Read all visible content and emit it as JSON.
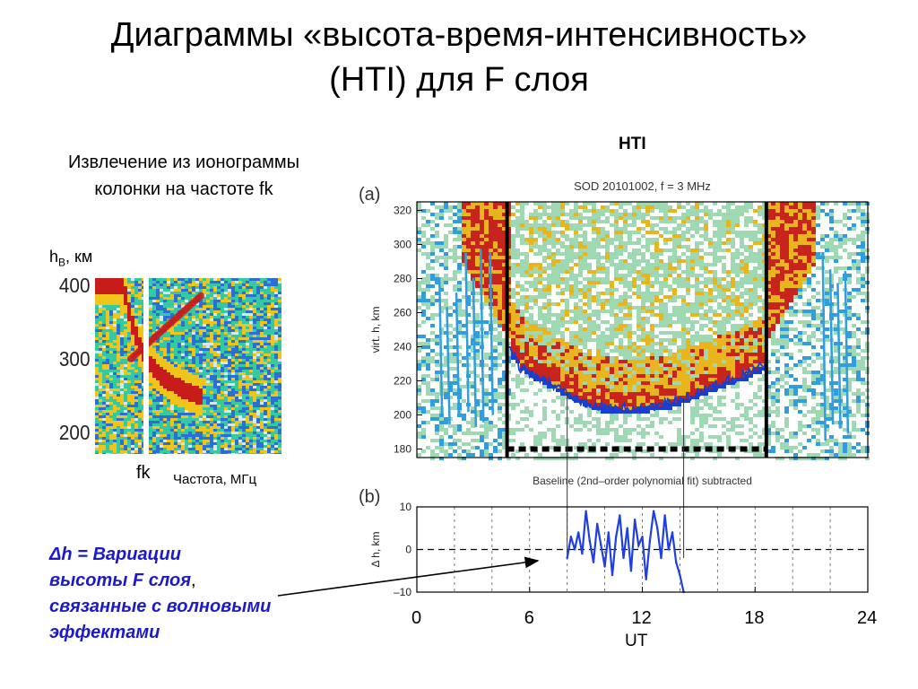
{
  "slide": {
    "title_line1": "Диаграммы «высота-время-интенсивность»",
    "title_line2": "(HTI) для F слоя",
    "left_caption_line1": "Извлечение из ионограммы",
    "left_caption_line2": "колонки на частоте fk",
    "hti_label": "HTI",
    "hb_label_main": "h",
    "hb_label_sub": "B",
    "hb_label_unit": ",  км",
    "fk_label": "fk",
    "freq_label": "Частота,  МГц",
    "annotation_line1": "Δh  =  Вариации",
    "annotation_line2a": "высоты F слоя",
    "annotation_comma": ",",
    "annotation_line3": "связанные с волновыми",
    "annotation_line4": "эффектами",
    "ut_label": "UT"
  },
  "chart_data": [
    {
      "type": "heatmap",
      "name": "ionogram",
      "ylabel": "",
      "yticks": [
        "400",
        "300",
        "200"
      ],
      "ylim": [
        170,
        410
      ],
      "highlight_column": "fk",
      "colors": {
        "low": "#2b6fd6",
        "mid": "#34c9a0",
        "high": "#f0c419",
        "peak": "#c81b1b"
      }
    },
    {
      "type": "heatmap",
      "panel": "(a)",
      "title": "SOD  20101002,   f = 3 MHz",
      "ylabel": "virt. h, km",
      "ylim": [
        175,
        325
      ],
      "yticks": [
        "320",
        "300",
        "280",
        "260",
        "240",
        "220",
        "200",
        "180"
      ],
      "xlim": [
        0,
        24
      ],
      "vertical_markers_ut": [
        4.8,
        18.6
      ],
      "layer_bottom_height": {
        "x": [
          4.8,
          5.5,
          6.5,
          7.5,
          8.5,
          9.5,
          10.5,
          11.5,
          12.5,
          13.5,
          14.5,
          15.5,
          16.5,
          17.5,
          18.6
        ],
        "y": [
          240,
          228,
          222,
          216,
          210,
          205,
          204,
          204,
          205,
          207,
          211,
          216,
          220,
          224,
          230
        ]
      },
      "colors": {
        "bg": "#9fd9b3",
        "noise": "#2f9de0",
        "layer": "#e8b51c",
        "core": "#c9231d",
        "edge": "#1a3fd0"
      }
    },
    {
      "type": "line",
      "panel": "(b)",
      "title": "Baseline (2nd–order polynomial fit) subtracted",
      "ylabel": "Δ h, km",
      "ylim": [
        -10,
        10
      ],
      "yticks": [
        "10",
        "0",
        "–10"
      ],
      "xlim": [
        0,
        24
      ],
      "xticks": [
        "0",
        "6",
        "12",
        "18",
        "24"
      ],
      "xlabel": "UT",
      "series": [
        {
          "x": [
            8.0,
            8.2,
            8.4,
            8.6,
            8.8,
            9.0,
            9.2,
            9.4,
            9.6,
            9.8,
            10.0,
            10.2,
            10.4,
            10.6,
            10.8,
            11.0,
            11.2,
            11.4,
            11.6,
            11.8,
            12.0,
            12.2,
            12.4,
            12.6,
            12.8,
            13.0,
            13.2,
            13.4,
            13.6,
            13.8,
            14.0,
            14.2
          ],
          "y": [
            -2,
            3,
            0,
            4,
            -1,
            9,
            2,
            -3,
            6,
            1,
            -4,
            4,
            -6,
            3,
            8,
            -2,
            5,
            -5,
            7,
            1,
            3,
            -7,
            2,
            9,
            5,
            -2,
            8,
            0,
            4,
            -3,
            -6,
            -10
          ]
        }
      ],
      "colors": {
        "line": "#1f3fe0"
      }
    }
  ]
}
